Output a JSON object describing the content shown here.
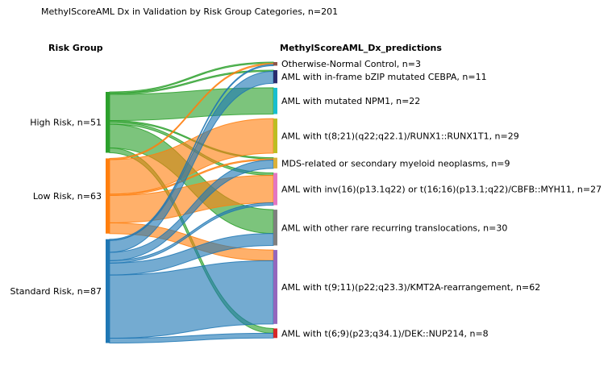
{
  "title": "MethylScoreAML Dx in Validation by Risk Group Categories, n=201",
  "left_header": "Risk Group",
  "right_header": "MethylScoreAML_Dx_predictions",
  "sources": [
    {
      "key": "high",
      "label": "High Risk, n=51",
      "count": 51,
      "color": "#2ca02c"
    },
    {
      "key": "low",
      "label": "Low Risk, n=63",
      "count": 63,
      "color": "#ff7f0e"
    },
    {
      "key": "std",
      "label": "Standard Risk, n=87",
      "count": 87,
      "color": "#1f77b4"
    }
  ],
  "targets": [
    {
      "key": "normal",
      "label": "Otherwise-Normal Control, n=3",
      "count": 3,
      "color": "#8c564b"
    },
    {
      "key": "cebpa",
      "label": "AML with in-frame bZIP mutated CEBPA, n=11",
      "count": 11,
      "color": "#2b2d6e"
    },
    {
      "key": "npm1",
      "label": "AML with mutated NPM1, n=22",
      "count": 22,
      "color": "#17becf"
    },
    {
      "key": "runx1",
      "label": "AML with t(8;21)(q22;q22.1)/RUNX1::RUNX1T1, n=29",
      "count": 29,
      "color": "#bcbd22"
    },
    {
      "key": "mds",
      "label": "MDS-related or secondary myeloid neoplasms, n=9",
      "count": 9,
      "color": "#dbb13a"
    },
    {
      "key": "cbfb",
      "label": "AML with inv(16)(p13.1q22) or t(16;16)(p13.1;q22)/CBFB::MYH11, n=27",
      "count": 27,
      "color": "#e377c2"
    },
    {
      "key": "rare",
      "label": "AML with other rare recurring translocations, n=30",
      "count": 30,
      "color": "#7f7f7f"
    },
    {
      "key": "kmt2a",
      "label": "AML with t(9;11)(p22;q23.3)/KMT2A-rearrangement, n=62",
      "count": 62,
      "color": "#9467bd"
    },
    {
      "key": "nup214",
      "label": "AML with t(6;9)(p23;q34.1)/DEK::NUP214, n=8",
      "count": 8,
      "color": "#d62728"
    }
  ],
  "flows": [
    {
      "source": "high",
      "target": "normal",
      "value": 1
    },
    {
      "source": "high",
      "target": "cebpa",
      "value": 1
    },
    {
      "source": "high",
      "target": "npm1",
      "value": 22
    },
    {
      "source": "high",
      "target": "mds",
      "value": 1
    },
    {
      "source": "high",
      "target": "cbfb",
      "value": 2
    },
    {
      "source": "high",
      "target": "rare",
      "value": 20
    },
    {
      "source": "high",
      "target": "nup214",
      "value": 4
    },
    {
      "source": "low",
      "target": "normal",
      "value": 1
    },
    {
      "source": "low",
      "target": "runx1",
      "value": 29
    },
    {
      "source": "low",
      "target": "mds",
      "value": 1
    },
    {
      "source": "low",
      "target": "cbfb",
      "value": 23
    },
    {
      "source": "low",
      "target": "kmt2a",
      "value": 9
    },
    {
      "source": "std",
      "target": "normal",
      "value": 1
    },
    {
      "source": "std",
      "target": "cebpa",
      "value": 10
    },
    {
      "source": "std",
      "target": "mds",
      "value": 7
    },
    {
      "source": "std",
      "target": "cbfb",
      "value": 2
    },
    {
      "source": "std",
      "target": "rare",
      "value": 10
    },
    {
      "source": "std",
      "target": "kmt2a",
      "value": 53
    },
    {
      "source": "std",
      "target": "nup214",
      "value": 4
    }
  ]
}
